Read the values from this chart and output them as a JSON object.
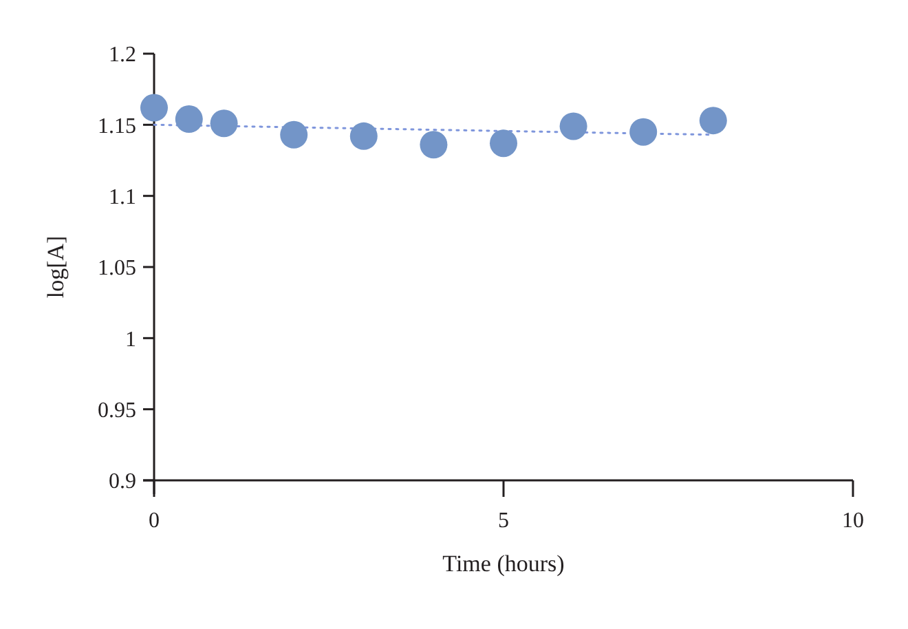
{
  "chart_data": {
    "type": "scatter",
    "xlabel": "Time (hours)",
    "ylabel": "log[A]",
    "xlim": [
      0,
      10
    ],
    "xticks": [
      0,
      5,
      10
    ],
    "ylim": [
      0.9,
      1.2
    ],
    "yticks": [
      0.9,
      0.95,
      1,
      1.05,
      1.1,
      1.15,
      1.2
    ],
    "grid": false,
    "marker": "circle",
    "series": [
      {
        "color": "#7395c8",
        "x": [
          0,
          0.5,
          1,
          2,
          3,
          4,
          5,
          6,
          7,
          8
        ],
        "values": [
          1.162,
          1.154,
          1.151,
          1.143,
          1.142,
          1.136,
          1.137,
          1.149,
          1.145,
          1.153
        ]
      },
      {
        "type": "line",
        "color": "#7f96dc",
        "line_style": "dotted",
        "marker": "none",
        "x": [
          0,
          8
        ],
        "values": [
          1.15,
          1.143
        ]
      }
    ]
  }
}
